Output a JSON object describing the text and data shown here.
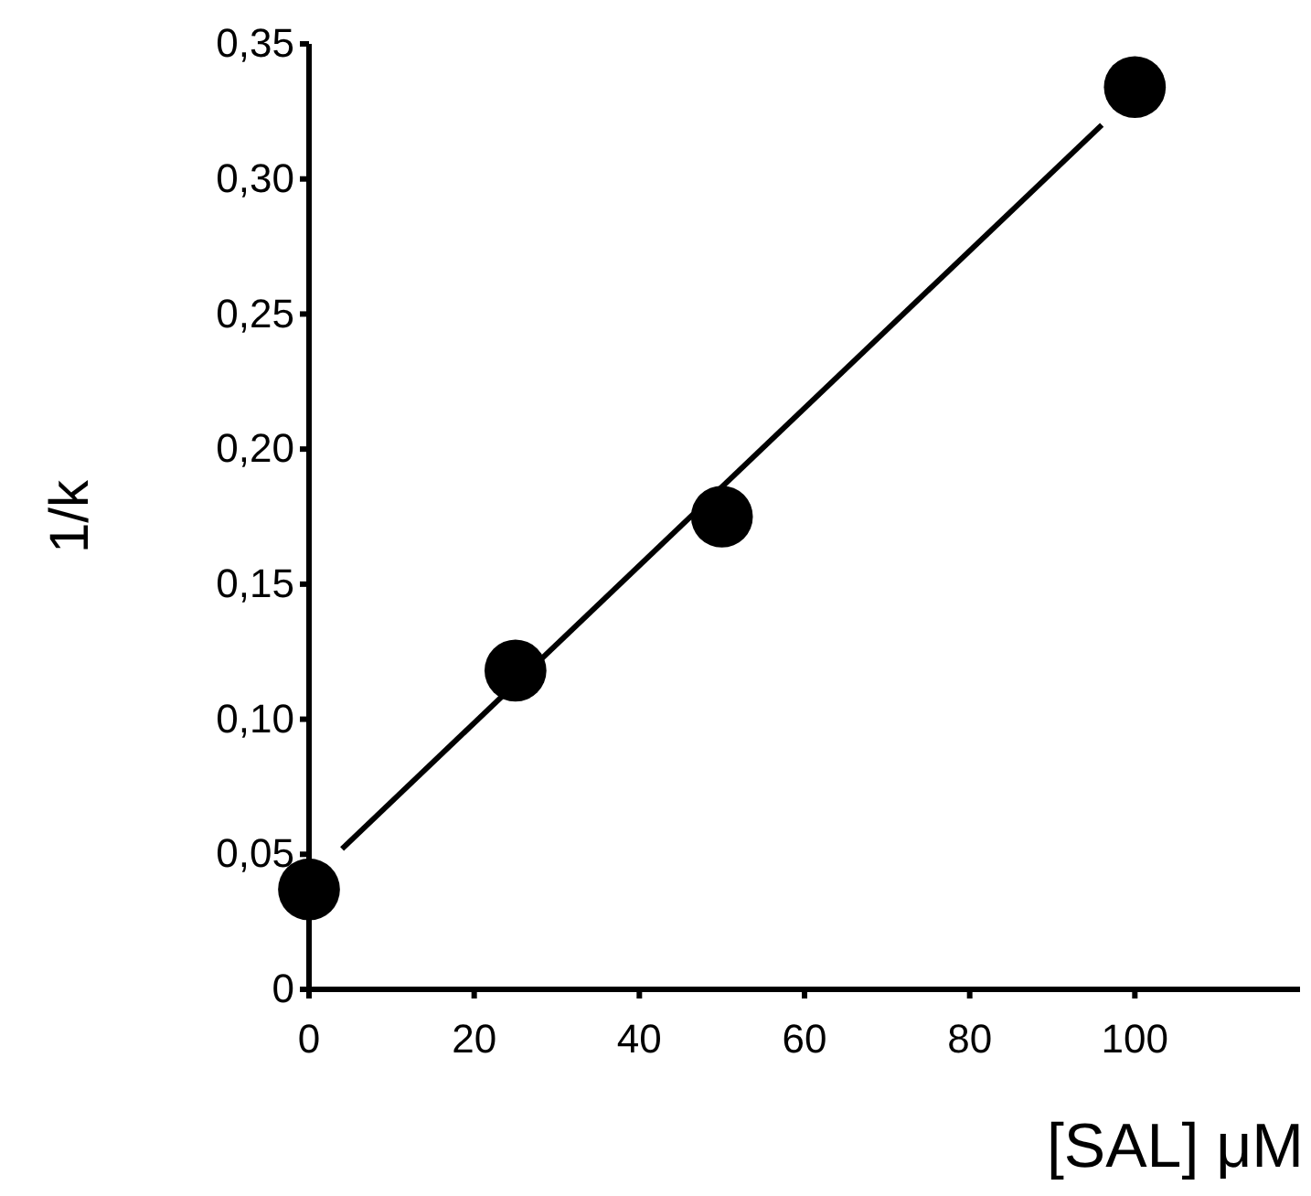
{
  "chart_data": {
    "type": "scatter",
    "xlabel": "[SAL] μM",
    "ylabel": "1/k",
    "xlim": [
      0,
      120
    ],
    "ylim": [
      0,
      0.35
    ],
    "xticks": [
      0,
      20,
      40,
      60,
      80,
      100
    ],
    "yticks": [
      0,
      {
        "value": 0.05,
        "label": "0,05"
      },
      {
        "value": 0.1,
        "label": "0,10"
      },
      {
        "value": 0.15,
        "label": "0,15"
      },
      {
        "value": 0.2,
        "label": "0,20"
      },
      {
        "value": 0.25,
        "label": "0,25"
      },
      {
        "value": 0.3,
        "label": "0,30"
      },
      {
        "value": 0.35,
        "label": "0,35"
      }
    ],
    "grid": false,
    "series": [
      {
        "type": "line",
        "color": "#000000",
        "x": [
          4,
          96
        ],
        "values": [
          0.052,
          0.32
        ],
        "marker": "none",
        "line_style": "solid"
      },
      {
        "color": "#000000",
        "x": [
          0,
          25,
          50,
          100
        ],
        "values": [
          0.037,
          0.118,
          0.175,
          0.334
        ],
        "marker": "circle"
      }
    ]
  }
}
